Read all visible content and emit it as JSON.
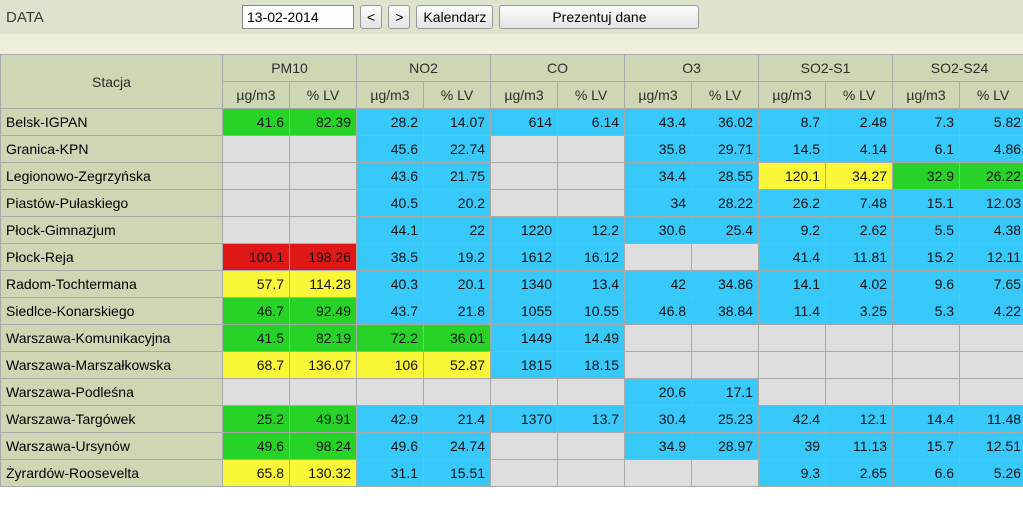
{
  "topbar": {
    "data_label": "DATA",
    "date_value": "13-02-2014",
    "prev": "<",
    "next": ">",
    "calendar": "Kalendarz",
    "present": "Prezentuj dane"
  },
  "headers": {
    "station": "Stacja",
    "groups": [
      "PM10",
      "NO2",
      "CO",
      "O3",
      "SO2-S1",
      "SO2-S24"
    ],
    "unit_ug": "µg/m3",
    "unit_lv": "% LV"
  },
  "color_map": {
    "": "c-empty",
    "g": "c-green",
    "c": "c-cyan",
    "y": "c-yellow",
    "r": "c-red"
  },
  "rows": [
    {
      "station": "Belsk-IGPAN",
      "cells": [
        {
          "v": "41.6",
          "c": "g"
        },
        {
          "v": "82.39",
          "c": "g"
        },
        {
          "v": "28.2",
          "c": "c"
        },
        {
          "v": "14.07",
          "c": "c"
        },
        {
          "v": "614",
          "c": "c"
        },
        {
          "v": "6.14",
          "c": "c"
        },
        {
          "v": "43.4",
          "c": "c"
        },
        {
          "v": "36.02",
          "c": "c"
        },
        {
          "v": "8.7",
          "c": "c"
        },
        {
          "v": "2.48",
          "c": "c"
        },
        {
          "v": "7.3",
          "c": "c"
        },
        {
          "v": "5.82",
          "c": "c"
        }
      ]
    },
    {
      "station": "Granica-KPN",
      "cells": [
        {
          "v": "",
          "c": ""
        },
        {
          "v": "",
          "c": ""
        },
        {
          "v": "45.6",
          "c": "c"
        },
        {
          "v": "22.74",
          "c": "c"
        },
        {
          "v": "",
          "c": ""
        },
        {
          "v": "",
          "c": ""
        },
        {
          "v": "35.8",
          "c": "c"
        },
        {
          "v": "29.71",
          "c": "c"
        },
        {
          "v": "14.5",
          "c": "c"
        },
        {
          "v": "4.14",
          "c": "c"
        },
        {
          "v": "6.1",
          "c": "c"
        },
        {
          "v": "4.86",
          "c": "c"
        }
      ]
    },
    {
      "station": "Legionowo-Zegrzyńska",
      "cells": [
        {
          "v": "",
          "c": ""
        },
        {
          "v": "",
          "c": ""
        },
        {
          "v": "43.6",
          "c": "c"
        },
        {
          "v": "21.75",
          "c": "c"
        },
        {
          "v": "",
          "c": ""
        },
        {
          "v": "",
          "c": ""
        },
        {
          "v": "34.4",
          "c": "c"
        },
        {
          "v": "28.55",
          "c": "c"
        },
        {
          "v": "120.1",
          "c": "y"
        },
        {
          "v": "34.27",
          "c": "y"
        },
        {
          "v": "32.9",
          "c": "g"
        },
        {
          "v": "26.22",
          "c": "g"
        }
      ]
    },
    {
      "station": "Piastów-Pułaskiego",
      "cells": [
        {
          "v": "",
          "c": ""
        },
        {
          "v": "",
          "c": ""
        },
        {
          "v": "40.5",
          "c": "c"
        },
        {
          "v": "20.2",
          "c": "c"
        },
        {
          "v": "",
          "c": ""
        },
        {
          "v": "",
          "c": ""
        },
        {
          "v": "34",
          "c": "c"
        },
        {
          "v": "28.22",
          "c": "c"
        },
        {
          "v": "26.2",
          "c": "c"
        },
        {
          "v": "7.48",
          "c": "c"
        },
        {
          "v": "15.1",
          "c": "c"
        },
        {
          "v": "12.03",
          "c": "c"
        }
      ]
    },
    {
      "station": "Płock-Gimnazjum",
      "cells": [
        {
          "v": "",
          "c": ""
        },
        {
          "v": "",
          "c": ""
        },
        {
          "v": "44.1",
          "c": "c"
        },
        {
          "v": "22",
          "c": "c"
        },
        {
          "v": "1220",
          "c": "c"
        },
        {
          "v": "12.2",
          "c": "c"
        },
        {
          "v": "30.6",
          "c": "c"
        },
        {
          "v": "25.4",
          "c": "c"
        },
        {
          "v": "9.2",
          "c": "c"
        },
        {
          "v": "2.62",
          "c": "c"
        },
        {
          "v": "5.5",
          "c": "c"
        },
        {
          "v": "4.38",
          "c": "c"
        }
      ]
    },
    {
      "station": "Płock-Reja",
      "cells": [
        {
          "v": "100.1",
          "c": "r"
        },
        {
          "v": "198.26",
          "c": "r"
        },
        {
          "v": "38.5",
          "c": "c"
        },
        {
          "v": "19.2",
          "c": "c"
        },
        {
          "v": "1612",
          "c": "c"
        },
        {
          "v": "16.12",
          "c": "c"
        },
        {
          "v": "",
          "c": ""
        },
        {
          "v": "",
          "c": ""
        },
        {
          "v": "41.4",
          "c": "c"
        },
        {
          "v": "11.81",
          "c": "c"
        },
        {
          "v": "15.2",
          "c": "c"
        },
        {
          "v": "12.11",
          "c": "c"
        }
      ]
    },
    {
      "station": "Radom-Tochtermana",
      "cells": [
        {
          "v": "57.7",
          "c": "y"
        },
        {
          "v": "114.28",
          "c": "y"
        },
        {
          "v": "40.3",
          "c": "c"
        },
        {
          "v": "20.1",
          "c": "c"
        },
        {
          "v": "1340",
          "c": "c"
        },
        {
          "v": "13.4",
          "c": "c"
        },
        {
          "v": "42",
          "c": "c"
        },
        {
          "v": "34.86",
          "c": "c"
        },
        {
          "v": "14.1",
          "c": "c"
        },
        {
          "v": "4.02",
          "c": "c"
        },
        {
          "v": "9.6",
          "c": "c"
        },
        {
          "v": "7.65",
          "c": "c"
        }
      ]
    },
    {
      "station": "Siedlce-Konarskiego",
      "cells": [
        {
          "v": "46.7",
          "c": "g"
        },
        {
          "v": "92.49",
          "c": "g"
        },
        {
          "v": "43.7",
          "c": "c"
        },
        {
          "v": "21.8",
          "c": "c"
        },
        {
          "v": "1055",
          "c": "c"
        },
        {
          "v": "10.55",
          "c": "c"
        },
        {
          "v": "46.8",
          "c": "c"
        },
        {
          "v": "38.84",
          "c": "c"
        },
        {
          "v": "11.4",
          "c": "c"
        },
        {
          "v": "3.25",
          "c": "c"
        },
        {
          "v": "5.3",
          "c": "c"
        },
        {
          "v": "4.22",
          "c": "c"
        }
      ]
    },
    {
      "station": "Warszawa-Komunikacyjna",
      "cells": [
        {
          "v": "41.5",
          "c": "g"
        },
        {
          "v": "82.19",
          "c": "g"
        },
        {
          "v": "72.2",
          "c": "g"
        },
        {
          "v": "36.01",
          "c": "g"
        },
        {
          "v": "1449",
          "c": "c"
        },
        {
          "v": "14.49",
          "c": "c"
        },
        {
          "v": "",
          "c": ""
        },
        {
          "v": "",
          "c": ""
        },
        {
          "v": "",
          "c": ""
        },
        {
          "v": "",
          "c": ""
        },
        {
          "v": "",
          "c": ""
        },
        {
          "v": "",
          "c": ""
        }
      ]
    },
    {
      "station": "Warszawa-Marszałkowska",
      "cells": [
        {
          "v": "68.7",
          "c": "y"
        },
        {
          "v": "136.07",
          "c": "y"
        },
        {
          "v": "106",
          "c": "y"
        },
        {
          "v": "52.87",
          "c": "y"
        },
        {
          "v": "1815",
          "c": "c"
        },
        {
          "v": "18.15",
          "c": "c"
        },
        {
          "v": "",
          "c": ""
        },
        {
          "v": "",
          "c": ""
        },
        {
          "v": "",
          "c": ""
        },
        {
          "v": "",
          "c": ""
        },
        {
          "v": "",
          "c": ""
        },
        {
          "v": "",
          "c": ""
        }
      ]
    },
    {
      "station": "Warszawa-Podleśna",
      "cells": [
        {
          "v": "",
          "c": ""
        },
        {
          "v": "",
          "c": ""
        },
        {
          "v": "",
          "c": ""
        },
        {
          "v": "",
          "c": ""
        },
        {
          "v": "",
          "c": ""
        },
        {
          "v": "",
          "c": ""
        },
        {
          "v": "20.6",
          "c": "c"
        },
        {
          "v": "17.1",
          "c": "c"
        },
        {
          "v": "",
          "c": ""
        },
        {
          "v": "",
          "c": ""
        },
        {
          "v": "",
          "c": ""
        },
        {
          "v": "",
          "c": ""
        }
      ]
    },
    {
      "station": "Warszawa-Targówek",
      "cells": [
        {
          "v": "25.2",
          "c": "g"
        },
        {
          "v": "49.91",
          "c": "g"
        },
        {
          "v": "42.9",
          "c": "c"
        },
        {
          "v": "21.4",
          "c": "c"
        },
        {
          "v": "1370",
          "c": "c"
        },
        {
          "v": "13.7",
          "c": "c"
        },
        {
          "v": "30.4",
          "c": "c"
        },
        {
          "v": "25.23",
          "c": "c"
        },
        {
          "v": "42.4",
          "c": "c"
        },
        {
          "v": "12.1",
          "c": "c"
        },
        {
          "v": "14.4",
          "c": "c"
        },
        {
          "v": "11.48",
          "c": "c"
        }
      ]
    },
    {
      "station": "Warszawa-Ursynów",
      "cells": [
        {
          "v": "49.6",
          "c": "g"
        },
        {
          "v": "98.24",
          "c": "g"
        },
        {
          "v": "49.6",
          "c": "c"
        },
        {
          "v": "24.74",
          "c": "c"
        },
        {
          "v": "",
          "c": ""
        },
        {
          "v": "",
          "c": ""
        },
        {
          "v": "34.9",
          "c": "c"
        },
        {
          "v": "28.97",
          "c": "c"
        },
        {
          "v": "39",
          "c": "c"
        },
        {
          "v": "11.13",
          "c": "c"
        },
        {
          "v": "15.7",
          "c": "c"
        },
        {
          "v": "12.51",
          "c": "c"
        }
      ]
    },
    {
      "station": "Żyrardów-Roosevelta",
      "cells": [
        {
          "v": "65.8",
          "c": "y"
        },
        {
          "v": "130.32",
          "c": "y"
        },
        {
          "v": "31.1",
          "c": "c"
        },
        {
          "v": "15.51",
          "c": "c"
        },
        {
          "v": "",
          "c": ""
        },
        {
          "v": "",
          "c": ""
        },
        {
          "v": "",
          "c": ""
        },
        {
          "v": "",
          "c": ""
        },
        {
          "v": "9.3",
          "c": "c"
        },
        {
          "v": "2.65",
          "c": "c"
        },
        {
          "v": "6.6",
          "c": "c"
        },
        {
          "v": "5.26",
          "c": "c"
        }
      ]
    }
  ]
}
